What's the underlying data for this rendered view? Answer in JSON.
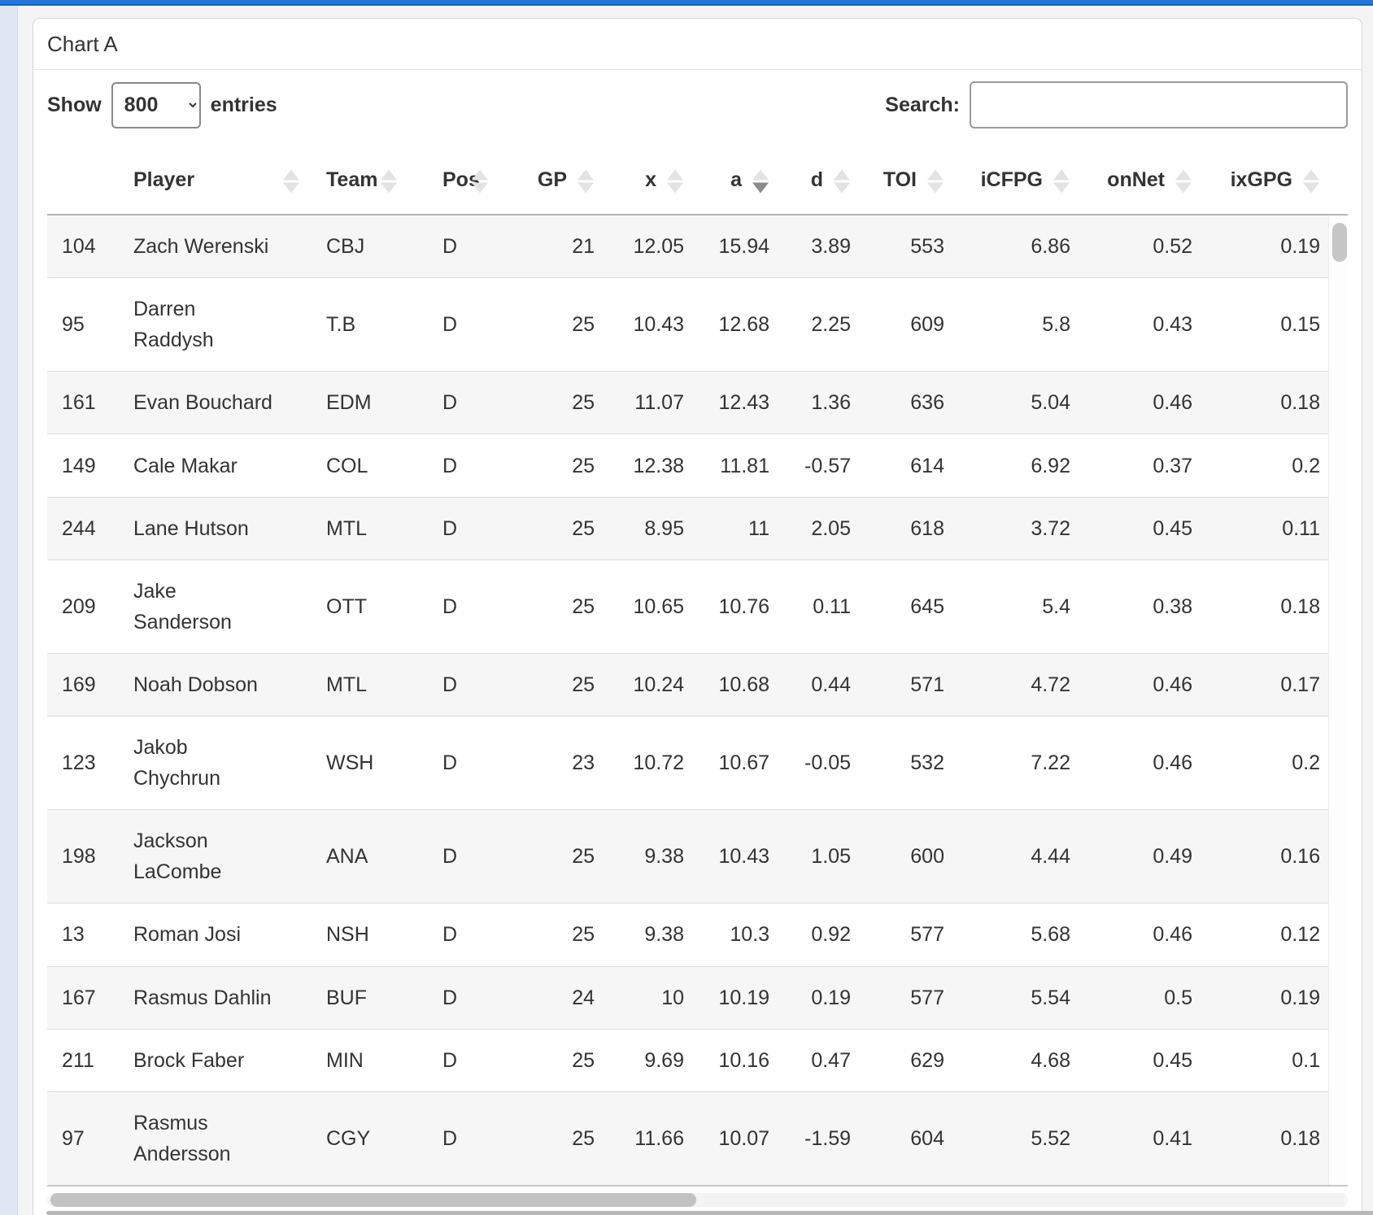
{
  "panel": {
    "title": "Chart A"
  },
  "controls": {
    "show_label": "Show",
    "entries_label": "entries",
    "page_size_value": "800",
    "search_label": "Search:",
    "search_value": ""
  },
  "table": {
    "columns": [
      {
        "key": "idx",
        "label": "",
        "align": "left",
        "sortable": false,
        "sort": "none"
      },
      {
        "key": "player",
        "label": "Player",
        "align": "left",
        "sortable": true,
        "sort": "none"
      },
      {
        "key": "team",
        "label": "Team",
        "align": "left",
        "sortable": true,
        "sort": "none"
      },
      {
        "key": "pos",
        "label": "Pos",
        "align": "left",
        "sortable": true,
        "sort": "none"
      },
      {
        "key": "gp",
        "label": "GP",
        "align": "right",
        "sortable": true,
        "sort": "none"
      },
      {
        "key": "x",
        "label": "x",
        "align": "right",
        "sortable": true,
        "sort": "none"
      },
      {
        "key": "a",
        "label": "a",
        "align": "right",
        "sortable": true,
        "sort": "desc"
      },
      {
        "key": "d",
        "label": "d",
        "align": "right",
        "sortable": true,
        "sort": "none"
      },
      {
        "key": "toi",
        "label": "TOI",
        "align": "right",
        "sortable": true,
        "sort": "none"
      },
      {
        "key": "icfpg",
        "label": "iCFPG",
        "align": "right",
        "sortable": true,
        "sort": "none"
      },
      {
        "key": "onnet",
        "label": "onNet",
        "align": "right",
        "sortable": true,
        "sort": "none"
      },
      {
        "key": "ixgpg",
        "label": "ixGPG",
        "align": "right",
        "sortable": true,
        "sort": "none"
      }
    ],
    "rows": [
      [
        "104",
        "Zach Werenski",
        "CBJ",
        "D",
        "21",
        "12.05",
        "15.94",
        "3.89",
        "553",
        "6.86",
        "0.52",
        "0.19"
      ],
      [
        "95",
        "Darren\nRaddysh",
        "T.B",
        "D",
        "25",
        "10.43",
        "12.68",
        "2.25",
        "609",
        "5.8",
        "0.43",
        "0.15"
      ],
      [
        "161",
        "Evan Bouchard",
        "EDM",
        "D",
        "25",
        "11.07",
        "12.43",
        "1.36",
        "636",
        "5.04",
        "0.46",
        "0.18"
      ],
      [
        "149",
        "Cale Makar",
        "COL",
        "D",
        "25",
        "12.38",
        "11.81",
        "-0.57",
        "614",
        "6.92",
        "0.37",
        "0.2"
      ],
      [
        "244",
        "Lane Hutson",
        "MTL",
        "D",
        "25",
        "8.95",
        "11",
        "2.05",
        "618",
        "3.72",
        "0.45",
        "0.11"
      ],
      [
        "209",
        "Jake\nSanderson",
        "OTT",
        "D",
        "25",
        "10.65",
        "10.76",
        "0.11",
        "645",
        "5.4",
        "0.38",
        "0.18"
      ],
      [
        "169",
        "Noah Dobson",
        "MTL",
        "D",
        "25",
        "10.24",
        "10.68",
        "0.44",
        "571",
        "4.72",
        "0.46",
        "0.17"
      ],
      [
        "123",
        "Jakob\nChychrun",
        "WSH",
        "D",
        "23",
        "10.72",
        "10.67",
        "-0.05",
        "532",
        "7.22",
        "0.46",
        "0.2"
      ],
      [
        "198",
        "Jackson\nLaCombe",
        "ANA",
        "D",
        "25",
        "9.38",
        "10.43",
        "1.05",
        "600",
        "4.44",
        "0.49",
        "0.16"
      ],
      [
        "13",
        "Roman Josi",
        "NSH",
        "D",
        "25",
        "9.38",
        "10.3",
        "0.92",
        "577",
        "5.68",
        "0.46",
        "0.12"
      ],
      [
        "167",
        "Rasmus Dahlin",
        "BUF",
        "D",
        "24",
        "10",
        "10.19",
        "0.19",
        "577",
        "5.54",
        "0.5",
        "0.19"
      ],
      [
        "211",
        "Brock Faber",
        "MIN",
        "D",
        "25",
        "9.69",
        "10.16",
        "0.47",
        "629",
        "4.68",
        "0.45",
        "0.1"
      ],
      [
        "97",
        "Rasmus\nAndersson",
        "CGY",
        "D",
        "25",
        "11.66",
        "10.07",
        "-1.59",
        "604",
        "5.52",
        "0.41",
        "0.18"
      ]
    ]
  },
  "colors": {
    "topbar_blue": "#2277de",
    "topbar_edge": "#1c5fae",
    "page_background": "#f4f4f4",
    "side_strip": "#e0e6f2",
    "row_stripe": "#f6f6f6",
    "sort_active": "#8b8b8b",
    "sort_inactive": "#e3e3e3",
    "scrollbar_thumb": "#c2c2c2"
  }
}
